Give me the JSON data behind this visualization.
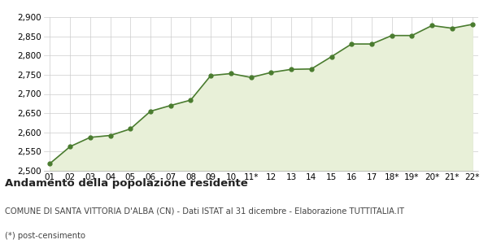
{
  "x_labels": [
    "01",
    "02",
    "03",
    "04",
    "05",
    "06",
    "07",
    "08",
    "09",
    "10",
    "11*",
    "12",
    "13",
    "14",
    "15",
    "16",
    "17",
    "18*",
    "19*",
    "20*",
    "21*",
    "22*"
  ],
  "y_values": [
    2519,
    2563,
    2587,
    2592,
    2609,
    2655,
    2670,
    2684,
    2748,
    2753,
    2743,
    2756,
    2764,
    2765,
    2797,
    2830,
    2830,
    2852,
    2852,
    2878,
    2871,
    2881
  ],
  "line_color": "#4a7c2f",
  "fill_color": "#e8f0d8",
  "marker_color": "#4a7c2f",
  "bg_color": "#ffffff",
  "grid_color": "#cccccc",
  "ylim_min": 2500,
  "ylim_max": 2900,
  "ytick_step": 50,
  "title": "Andamento della popolazione residente",
  "subtitle": "COMUNE DI SANTA VITTORIA D'ALBA (CN) - Dati ISTAT al 31 dicembre - Elaborazione TUTTITALIA.IT",
  "footnote": "(*) post-censimento",
  "title_fontsize": 9.5,
  "subtitle_fontsize": 7.2,
  "footnote_fontsize": 7.2,
  "tick_fontsize": 7.5
}
